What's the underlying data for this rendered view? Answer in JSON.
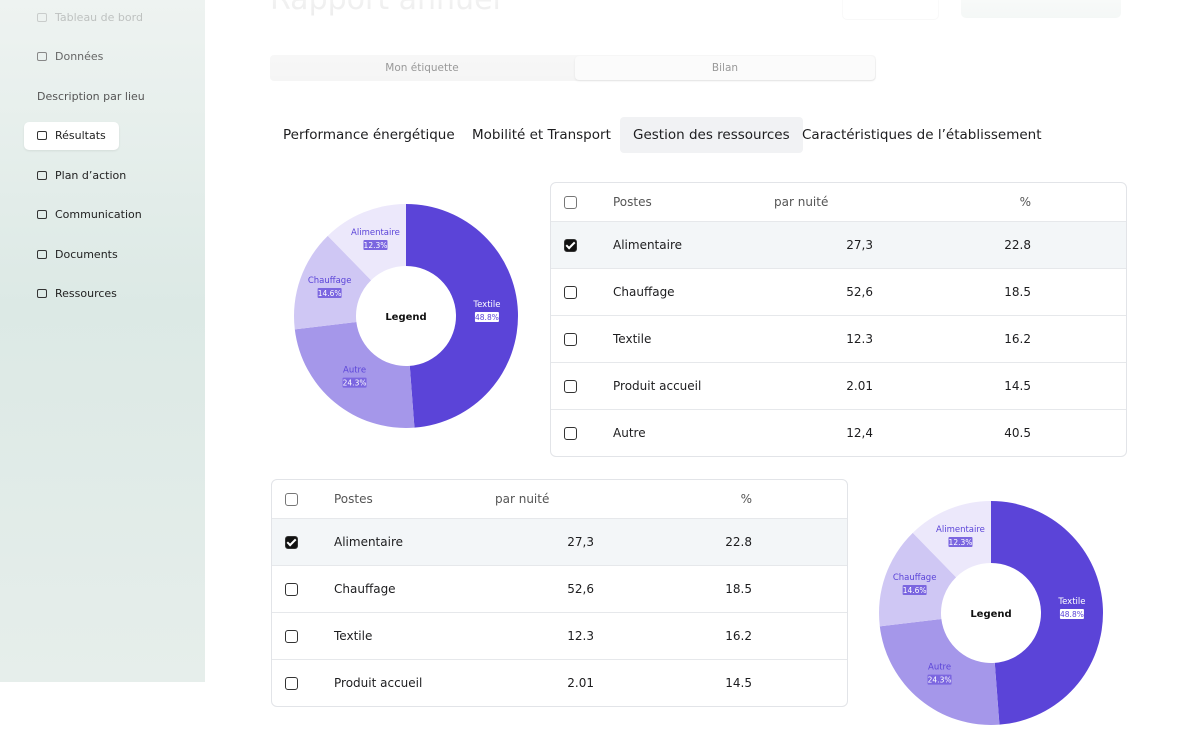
{
  "header": {
    "title": "Rapport annuel"
  },
  "sidebar": {
    "items": [
      {
        "label": "Tableau de bord",
        "active": false
      },
      {
        "label": "Données",
        "active": false
      },
      {
        "label": "Description par lieu",
        "active": false
      },
      {
        "label": "Résultats",
        "active": true
      },
      {
        "label": "Plan d’action",
        "active": false
      },
      {
        "label": "Communication",
        "active": false
      },
      {
        "label": "Documents",
        "active": false
      },
      {
        "label": "Ressources",
        "active": false
      }
    ]
  },
  "toggle": {
    "options": [
      {
        "label": "Mon étiquette",
        "active": false
      },
      {
        "label": "Bilan",
        "active": true
      }
    ]
  },
  "tabs": {
    "items": [
      {
        "label": "Performance énergétique",
        "active": false
      },
      {
        "label": "Mobilité et Transport",
        "active": false
      },
      {
        "label": "Gestion des ressources",
        "active": true
      },
      {
        "label": "Caractéristiques de l’établissement",
        "active": false
      }
    ]
  },
  "sections": [
    {
      "table": {
        "header": {
          "poste": "Postes",
          "par_nuite": "par nuité",
          "pct": "%"
        },
        "rows": [
          {
            "checked": true,
            "poste": "Alimentaire",
            "par_nuite": "27,3",
            "pct": "22.8"
          },
          {
            "checked": false,
            "poste": "Chauffage",
            "par_nuite": "52,6",
            "pct": "18.5"
          },
          {
            "checked": false,
            "poste": "Textile",
            "par_nuite": "12.3",
            "pct": "16.2"
          },
          {
            "checked": false,
            "poste": "Produit accueil",
            "par_nuite": "2.01",
            "pct": "14.5"
          },
          {
            "checked": false,
            "poste": "Autre",
            "par_nuite": "12,4",
            "pct": "40.5"
          }
        ]
      },
      "chart": {
        "type": "donut",
        "center_label": "Legend",
        "slices": [
          {
            "name": "Textile",
            "value": 48.8,
            "label": "48.8%",
            "color": "#5b44d8"
          },
          {
            "name": "Autre",
            "value": 24.3,
            "label": "24.3%",
            "color": "#a597ea"
          },
          {
            "name": "Chauffage",
            "value": 14.6,
            "label": "14.6%",
            "color": "#cfc7f4"
          },
          {
            "name": "Alimentaire",
            "value": 12.3,
            "label": "12.3%",
            "color": "#ece8fb"
          }
        ]
      }
    },
    {
      "table": {
        "header": {
          "poste": "Postes",
          "par_nuite": "par nuité",
          "pct": "%"
        },
        "rows": [
          {
            "checked": true,
            "poste": "Alimentaire",
            "par_nuite": "27,3",
            "pct": "22.8"
          },
          {
            "checked": false,
            "poste": "Chauffage",
            "par_nuite": "52,6",
            "pct": "18.5"
          },
          {
            "checked": false,
            "poste": "Textile",
            "par_nuite": "12.3",
            "pct": "16.2"
          },
          {
            "checked": false,
            "poste": "Produit accueil",
            "par_nuite": "2.01",
            "pct": "14.5"
          }
        ]
      },
      "chart": {
        "type": "donut",
        "center_label": "Legend",
        "slices": [
          {
            "name": "Textile",
            "value": 48.8,
            "label": "48.8%",
            "color": "#5b44d8"
          },
          {
            "name": "Autre",
            "value": 24.3,
            "label": "24.3%",
            "color": "#a597ea"
          },
          {
            "name": "Chauffage",
            "value": 14.6,
            "label": "14.6%",
            "color": "#cfc7f4"
          },
          {
            "name": "Alimentaire",
            "value": 12.3,
            "label": "12.3%",
            "color": "#ece8fb"
          }
        ]
      }
    }
  ]
}
